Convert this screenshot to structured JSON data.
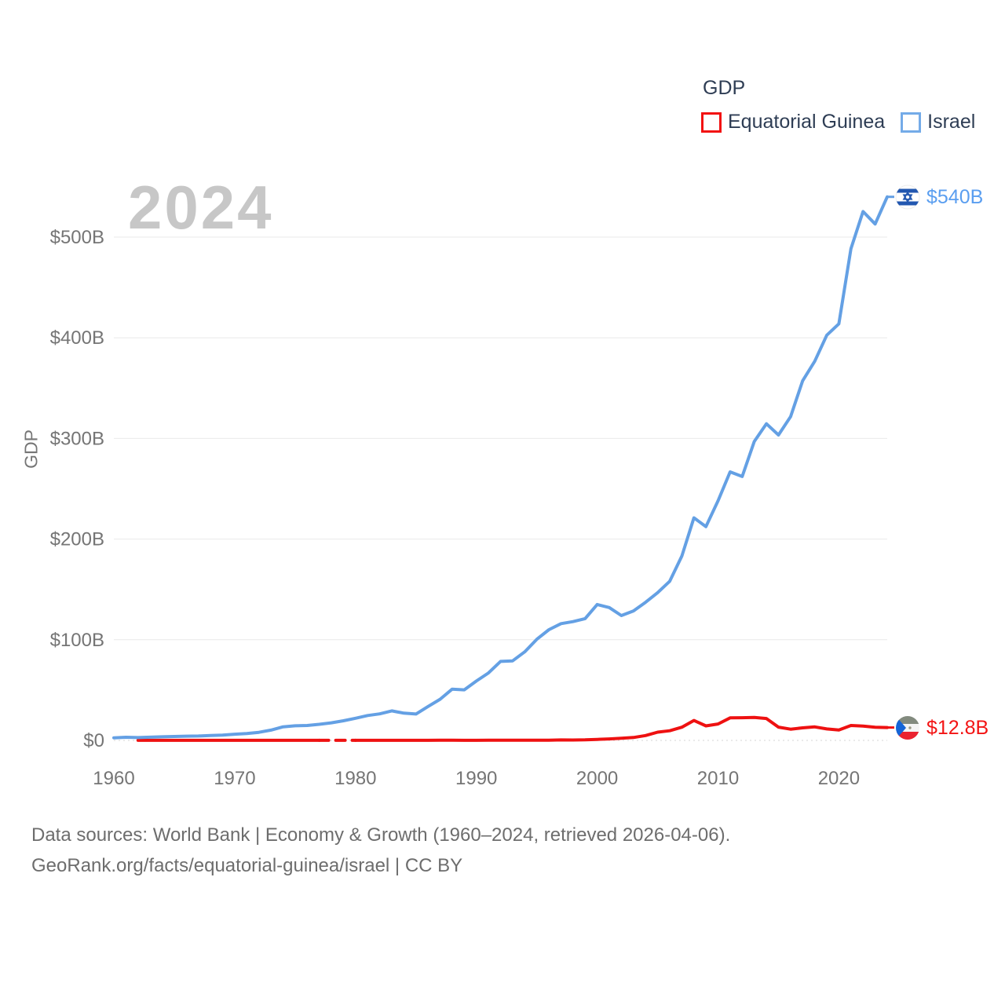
{
  "legend": {
    "title": "GDP",
    "items": [
      {
        "label": "Equatorial Guinea",
        "color": "#ee1111"
      },
      {
        "label": "Israel",
        "color": "#64a0e4"
      }
    ]
  },
  "watermark": "2024",
  "axes": {
    "y_label": "GDP",
    "y_ticks": [
      "$0",
      "$100B",
      "$200B",
      "$300B",
      "$400B",
      "$500B"
    ],
    "x_ticks": [
      "1960",
      "1970",
      "1980",
      "1990",
      "2000",
      "2010",
      "2020"
    ]
  },
  "end_labels": {
    "israel": {
      "text": "$540B",
      "color": "#5a9ef0",
      "flag": "israel-flag"
    },
    "equatorial_guinea": {
      "text": "$12.8B",
      "color": "#f31414",
      "flag": "equatorial-guinea-flag"
    }
  },
  "footer": {
    "line1": "Data sources: World Bank | Economy & Growth (1960–2024, retrieved 2026-04-06).",
    "line2": "GeoRank.org/facts/equatorial-guinea/israel | CC BY"
  },
  "chart_data": {
    "type": "line",
    "title": "GDP",
    "ylabel": "GDP",
    "xlabel": "",
    "ylim": [
      0,
      540
    ],
    "xlim": [
      1960,
      2024
    ],
    "grid": true,
    "legend_position": "top-right",
    "y_gridlines": [
      0,
      100,
      200,
      300,
      400,
      500
    ],
    "y_tick_labels": [
      "$0",
      "$100B",
      "$200B",
      "$300B",
      "$400B",
      "$500B"
    ],
    "x_tick_years": [
      1960,
      1970,
      1980,
      1990,
      2000,
      2010,
      2020
    ],
    "x_tick_labels": [
      "1960",
      "1970",
      "1980",
      "1990",
      "2000",
      "2010",
      "2020"
    ],
    "x": [
      1960,
      1961,
      1962,
      1963,
      1964,
      1965,
      1966,
      1967,
      1968,
      1969,
      1970,
      1971,
      1972,
      1973,
      1974,
      1975,
      1976,
      1977,
      1978,
      1979,
      1980,
      1981,
      1982,
      1983,
      1984,
      1985,
      1986,
      1987,
      1988,
      1989,
      1990,
      1991,
      1992,
      1993,
      1994,
      1995,
      1996,
      1997,
      1998,
      1999,
      2000,
      2001,
      2002,
      2003,
      2004,
      2005,
      2006,
      2007,
      2008,
      2009,
      2010,
      2011,
      2012,
      2013,
      2014,
      2015,
      2016,
      2017,
      2018,
      2019,
      2020,
      2021,
      2022,
      2023,
      2024
    ],
    "series": [
      {
        "name": "Equatorial Guinea",
        "color": "#ee1111",
        "unit": "billion USD",
        "end_value_label": "$12.8B",
        "dashed_range": [
          1977,
          1980
        ],
        "values": [
          null,
          null,
          0.06,
          0.06,
          0.07,
          0.07,
          0.07,
          0.08,
          0.08,
          0.07,
          0.07,
          0.07,
          0.07,
          0.08,
          0.11,
          0.11,
          0.11,
          0.1,
          0.09,
          0.08,
          0.06,
          0.07,
          0.09,
          0.09,
          0.09,
          0.08,
          0.11,
          0.12,
          0.12,
          0.1,
          0.11,
          0.12,
          0.15,
          0.16,
          0.12,
          0.14,
          0.23,
          0.44,
          0.37,
          0.55,
          1.05,
          1.46,
          2.09,
          2.87,
          4.83,
          8.22,
          9.6,
          13.11,
          19.82,
          14.43,
          16.3,
          22.39,
          22.56,
          22.86,
          21.74,
          13.18,
          11.17,
          12.49,
          13.42,
          11.42,
          10.33,
          14.8,
          14.2,
          13.0,
          12.8
        ]
      },
      {
        "name": "Israel",
        "color": "#64a0e4",
        "unit": "billion USD",
        "end_value_label": "$540B",
        "values": [
          2.6,
          3.1,
          2.8,
          3.2,
          3.6,
          3.9,
          4.2,
          4.4,
          4.8,
          5.3,
          6.2,
          6.9,
          8.0,
          10.2,
          13.5,
          14.5,
          14.8,
          16.0,
          17.5,
          19.5,
          22.0,
          24.7,
          26.4,
          29.3,
          27.1,
          26.2,
          33.7,
          40.9,
          50.9,
          50.2,
          59.0,
          67.0,
          78.5,
          79.0,
          88.0,
          100.5,
          110.0,
          116.0,
          118.0,
          121.0,
          135.0,
          132.0,
          124.0,
          128.6,
          137.2,
          146.8,
          158.1,
          183.1,
          221.1,
          212.4,
          238.0,
          266.8,
          262.2,
          297.0,
          314.6,
          303.4,
          321.6,
          357.3,
          376.7,
          402.6,
          413.9,
          488.5,
          525.4,
          513.0,
          540.0
        ]
      }
    ]
  }
}
